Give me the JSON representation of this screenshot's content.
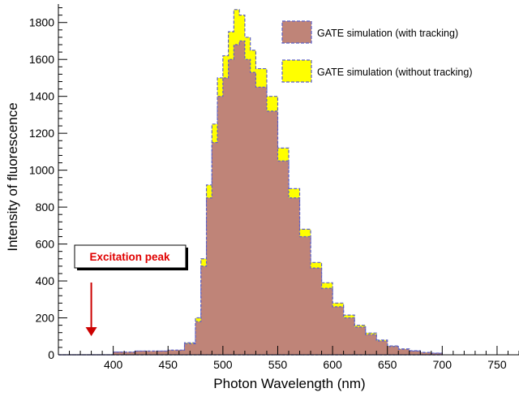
{
  "chart_data": {
    "type": "area",
    "xlabel": "Photon Wavelength (nm)",
    "ylabel": "Intensity of fluorescence",
    "xlim": [
      350,
      770
    ],
    "ylim": [
      0,
      1900
    ],
    "xticks": [
      400,
      450,
      500,
      550,
      600,
      650,
      700,
      750
    ],
    "yticks": [
      0,
      200,
      400,
      600,
      800,
      1000,
      1200,
      1400,
      1600,
      1800
    ],
    "grid": false,
    "legend_position": "top-right",
    "colors": {
      "with_tracking_fill": "#bf8478",
      "without_tracking_fill": "#ffff00",
      "outline": "#5b5fc7",
      "annotation_text": "#e00000",
      "arrow": "#cc0000"
    },
    "x": [
      350,
      380,
      400,
      420,
      450,
      465,
      475,
      480,
      485,
      490,
      495,
      500,
      505,
      510,
      515,
      520,
      525,
      530,
      540,
      550,
      560,
      570,
      580,
      590,
      600,
      610,
      620,
      630,
      640,
      650,
      660,
      670,
      680,
      690,
      700
    ],
    "series": [
      {
        "name": "GATE simulation (with tracking)",
        "values": [
          0,
          0,
          15,
          20,
          25,
          60,
          180,
          480,
          850,
          1150,
          1400,
          1500,
          1600,
          1680,
          1700,
          1600,
          1530,
          1450,
          1320,
          1050,
          850,
          640,
          470,
          360,
          260,
          200,
          150,
          110,
          75,
          45,
          30,
          20,
          12,
          8,
          5
        ]
      },
      {
        "name": "GATE simulation (without tracking)",
        "values": [
          0,
          0,
          15,
          20,
          25,
          65,
          200,
          520,
          920,
          1250,
          1500,
          1620,
          1750,
          1870,
          1840,
          1720,
          1650,
          1550,
          1400,
          1120,
          900,
          680,
          500,
          390,
          280,
          215,
          160,
          118,
          80,
          48,
          32,
          22,
          13,
          9,
          5
        ]
      }
    ],
    "annotations": [
      {
        "text": "Excitation peak",
        "x": 380
      }
    ]
  }
}
